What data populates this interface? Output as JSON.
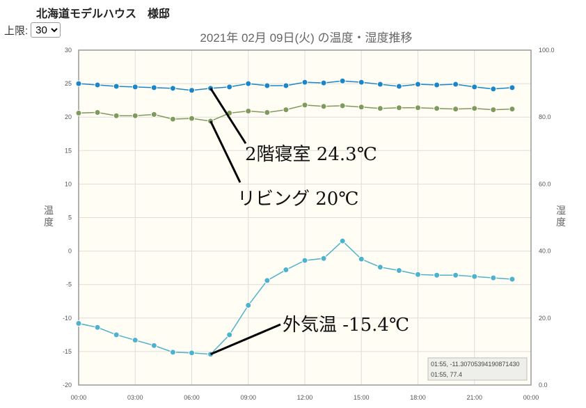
{
  "header": {
    "title": "北海道モデルハウス　様邸"
  },
  "limit": {
    "label": "上限:",
    "selected": "30",
    "options": [
      "30"
    ]
  },
  "colors": {
    "series_bedroom": "#1a86c8",
    "series_living": "#7f9a5a",
    "series_outdoor": "#4eb2cc",
    "plot_bg": "#fffdf4",
    "grid": "#dddddd",
    "annotation_line": "#000000"
  },
  "chart_data": {
    "type": "line",
    "title": "2021年 02月 09日(火) の温度・湿度推移",
    "x": [
      "00:00",
      "01:00",
      "02:00",
      "03:00",
      "04:00",
      "05:00",
      "06:00",
      "07:00",
      "08:00",
      "09:00",
      "10:00",
      "11:00",
      "12:00",
      "13:00",
      "14:00",
      "15:00",
      "16:00",
      "17:00",
      "18:00",
      "19:00",
      "20:00",
      "21:00",
      "22:00",
      "23:00"
    ],
    "xticks": [
      "00:00",
      "03:00",
      "06:00",
      "09:00",
      "12:00",
      "15:00",
      "18:00",
      "21:00",
      "00:00"
    ],
    "ylabel_left": "温度",
    "ylabel_right": "湿度",
    "ylim_left": [
      -20,
      30
    ],
    "ylim_right": [
      0,
      100
    ],
    "yticks_left": [
      "30",
      "25",
      "20",
      "15",
      "10",
      "5",
      "0",
      "-5",
      "-10",
      "-15",
      "-20"
    ],
    "yticks_right": [
      "100.0",
      "80.0",
      "60.0",
      "40.0",
      "20.0",
      "0.0"
    ],
    "grid": true,
    "series": [
      {
        "values": [
          25.0,
          24.8,
          24.6,
          24.5,
          24.4,
          24.3,
          24.0,
          24.3,
          24.5,
          25.0,
          24.7,
          24.7,
          25.2,
          25.1,
          25.4,
          25.2,
          24.9,
          24.6,
          24.9,
          24.8,
          24.9,
          24.5,
          24.2,
          24.4
        ]
      },
      {
        "values": [
          20.6,
          20.7,
          20.2,
          20.2,
          20.4,
          19.7,
          19.8,
          19.4,
          20.6,
          20.9,
          20.7,
          21.1,
          21.8,
          21.6,
          21.7,
          21.5,
          21.3,
          21.4,
          21.4,
          21.3,
          21.2,
          21.3,
          21.1,
          21.2
        ]
      },
      {
        "values": [
          -10.8,
          -11.4,
          -12.5,
          -13.3,
          -14.1,
          -15.1,
          -15.2,
          -15.4,
          -12.5,
          -8.1,
          -4.4,
          -2.8,
          -1.4,
          -1.1,
          1.5,
          -1.2,
          -2.4,
          -2.9,
          -3.5,
          -3.6,
          -3.6,
          -3.8,
          -4.0,
          -4.2
        ]
      }
    ],
    "annotations": [
      "2階寝室  24.3℃",
      "リビング  20℃",
      "外気温  -15.4℃"
    ],
    "tooltip": [
      "01:55, -11.307053941908714​30",
      "01:55, 77.4"
    ]
  }
}
